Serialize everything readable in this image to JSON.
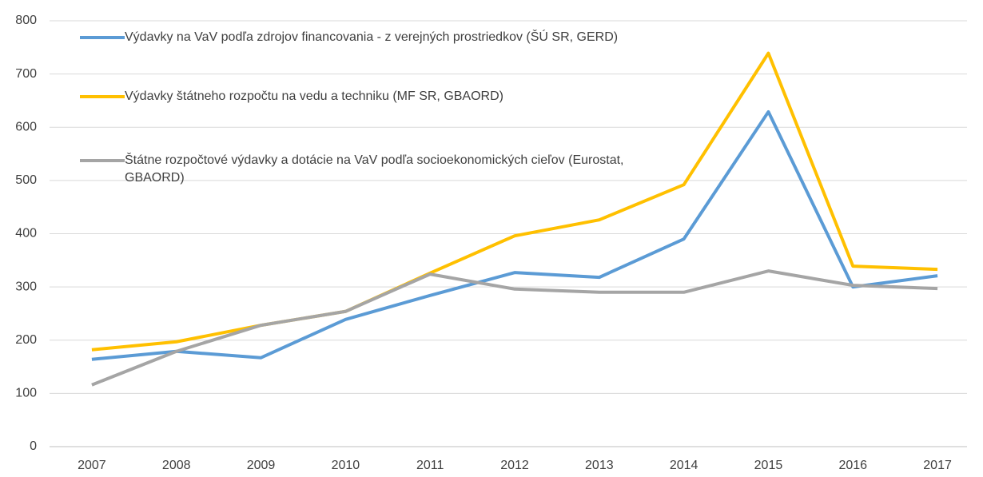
{
  "chart_data": {
    "type": "line",
    "categories": [
      "2007",
      "2008",
      "2009",
      "2010",
      "2011",
      "2012",
      "2013",
      "2014",
      "2015",
      "2016",
      "2017"
    ],
    "series": [
      {
        "name": "Výdavky na VaV podľa zdrojov financovania - z verejných prostriedkov (ŠÚ SR, GERD)",
        "color": "#5b9bd5",
        "values": [
          164,
          179,
          167,
          239,
          284,
          327,
          318,
          390,
          629,
          300,
          321
        ]
      },
      {
        "name": "Výdavky štátneho rozpočtu na vedu a techniku (MF SR, GBAORD)",
        "color": "#ffc000",
        "values": [
          182,
          197,
          228,
          254,
          326,
          396,
          426,
          492,
          739,
          339,
          333
        ]
      },
      {
        "name": "Štátne rozpočtové výdavky a dotácie na VaV podľa socioekonomických cieľov (Eurostat, GBAORD)",
        "color": "#a5a5a5",
        "values": [
          116,
          179,
          228,
          254,
          324,
          296,
          290,
          290,
          330,
          303,
          297
        ]
      }
    ],
    "ylim": [
      0,
      800
    ],
    "yticks": [
      0,
      100,
      200,
      300,
      400,
      500,
      600,
      700,
      800
    ],
    "grid": true,
    "legend": "upper left"
  }
}
